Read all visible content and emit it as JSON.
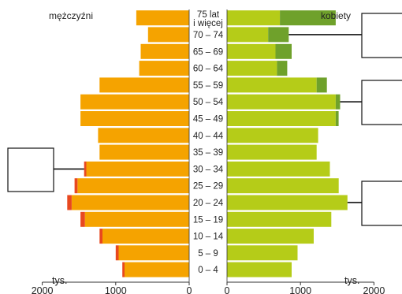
{
  "chart_data": {
    "type": "bar",
    "orientation": "horizontal",
    "layout": "population-pyramid",
    "left_label": "mężczyźni",
    "right_label": "kobiety",
    "unit_label": "tys.",
    "age_groups": [
      "75 lat i więcej",
      "70 – 74",
      "65 – 69",
      "60 – 64",
      "55 – 59",
      "50 – 54",
      "45 – 49",
      "40 – 44",
      "35 – 39",
      "30 – 34",
      "25 – 29",
      "20 – 24",
      "15 – 19",
      "10 – 14",
      "5 – 9",
      "0 – 4"
    ],
    "age_label_lines": [
      [
        "75 lat",
        "i więcej"
      ],
      [
        "70 – 74"
      ],
      [
        "65 – 69"
      ],
      [
        "60 – 64"
      ],
      [
        "55 – 59"
      ],
      [
        "50 – 54"
      ],
      [
        "45 – 49"
      ],
      [
        "40 – 44"
      ],
      [
        "35 – 39"
      ],
      [
        "30 – 34"
      ],
      [
        "25 – 29"
      ],
      [
        "20 – 24"
      ],
      [
        "15 – 19"
      ],
      [
        "10 – 14"
      ],
      [
        "5 – 9"
      ],
      [
        "0 – 4"
      ]
    ],
    "series": [
      {
        "name": "mężczyźni",
        "side": "left",
        "color": "#f5a300",
        "values": [
          720,
          560,
          660,
          680,
          1220,
          1480,
          1480,
          1240,
          1220,
          1400,
          1520,
          1600,
          1420,
          1180,
          960,
          880
        ]
      },
      {
        "name": "mężczyźni – nadwyżka",
        "side": "left",
        "color": "#e8481f",
        "values": [
          0,
          0,
          0,
          0,
          0,
          0,
          0,
          0,
          0,
          30,
          40,
          60,
          60,
          40,
          40,
          30
        ]
      },
      {
        "name": "kobiety",
        "side": "right",
        "color": "#b5cc18",
        "values": [
          720,
          560,
          660,
          680,
          1220,
          1480,
          1480,
          1240,
          1220,
          1400,
          1520,
          1640,
          1420,
          1180,
          960,
          880
        ]
      },
      {
        "name": "kobiety – nadwyżka",
        "side": "right",
        "color": "#6fa12b",
        "values": [
          760,
          280,
          220,
          140,
          140,
          60,
          40,
          0,
          0,
          0,
          0,
          0,
          0,
          0,
          0,
          0
        ]
      }
    ],
    "x_ticks_left": [
      "2000",
      "1000",
      "0"
    ],
    "x_ticks_right": [
      "0",
      "1000",
      "2000"
    ],
    "xlim": [
      0,
      2000
    ],
    "grid": false,
    "annotation_boxes": [
      {
        "side": "left",
        "points_to": "30 – 34",
        "text": ""
      },
      {
        "side": "right",
        "points_to": "70 – 74",
        "text": ""
      },
      {
        "side": "right",
        "points_to": "50 – 54",
        "text": ""
      },
      {
        "side": "right",
        "points_to": "20 – 24",
        "text": ""
      }
    ]
  }
}
